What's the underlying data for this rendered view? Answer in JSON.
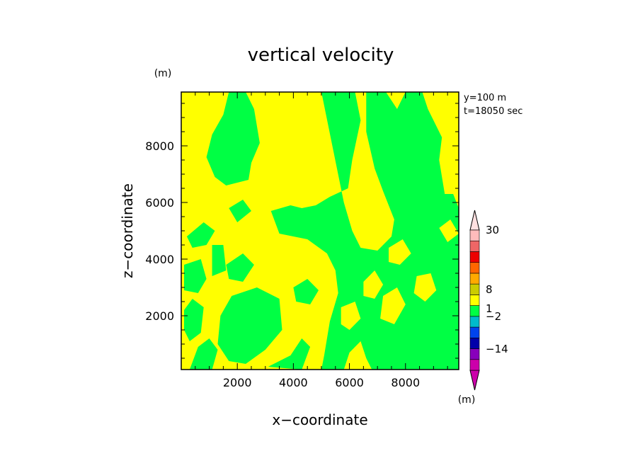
{
  "chart_data": {
    "type": "heatmap",
    "title": "vertical velocity",
    "xlabel": "x−coordinate",
    "ylabel": "z−coordinate",
    "x_unit": "(m)",
    "y_unit": "(m)",
    "annotations": [
      "y=100 m",
      "t=18050 sec"
    ],
    "xlim": [
      0,
      9900
    ],
    "ylim": [
      100,
      9900
    ],
    "x_ticks": [
      2000,
      4000,
      6000,
      8000
    ],
    "y_ticks": [
      2000,
      4000,
      6000,
      8000
    ],
    "x_tick_labels": [
      "2000",
      "4000",
      "6000",
      "8000"
    ],
    "y_tick_labels": [
      "2000",
      "4000",
      "6000",
      "8000"
    ],
    "colorbar": {
      "unit": "(m)",
      "labels": [
        {
          "value": 30,
          "text": "30"
        },
        {
          "value": 8,
          "text": "8"
        },
        {
          "value": 1,
          "text": "1"
        },
        {
          "value": -2,
          "text": "−2"
        },
        {
          "value": -14,
          "text": "−14"
        }
      ],
      "levels": [
        {
          "color": "#cc00aa"
        },
        {
          "color": "#8800bb"
        },
        {
          "color": "#0000aa"
        },
        {
          "color": "#0044ee"
        },
        {
          "color": "#00bbcc"
        },
        {
          "color": "#00ff44"
        },
        {
          "color": "#ffff00"
        },
        {
          "color": "#cccc00"
        },
        {
          "color": "#ffaa00"
        },
        {
          "color": "#ff6600"
        },
        {
          "color": "#ee0000"
        },
        {
          "color": "#ee6666"
        },
        {
          "color": "#ffbbbb"
        }
      ],
      "min_color": "#cc00aa",
      "max_color": "#ffe0e0"
    },
    "field_colors": {
      "positive": "#ffff00",
      "negative": "#00ff44"
    },
    "regions_negative": [
      [
        [
          5000,
          9900
        ],
        [
          6200,
          9900
        ],
        [
          6400,
          8900
        ],
        [
          6100,
          7500
        ],
        [
          5950,
          6500
        ],
        [
          5300,
          6200
        ],
        [
          4800,
          5900
        ],
        [
          4300,
          5800
        ],
        [
          3900,
          5900
        ],
        [
          3200,
          5700
        ],
        [
          3500,
          4900
        ],
        [
          4500,
          4700
        ],
        [
          5200,
          4200
        ],
        [
          5500,
          3600
        ],
        [
          5600,
          2800
        ],
        [
          5300,
          1800
        ],
        [
          5100,
          600
        ],
        [
          5000,
          100
        ],
        [
          5800,
          100
        ],
        [
          6000,
          700
        ],
        [
          6400,
          1100
        ],
        [
          6600,
          500
        ],
        [
          6800,
          100
        ],
        [
          9900,
          100
        ],
        [
          9900,
          5800
        ],
        [
          9700,
          6300
        ],
        [
          9400,
          6300
        ],
        [
          9200,
          7500
        ],
        [
          9300,
          8300
        ],
        [
          8800,
          9300
        ],
        [
          8600,
          9900
        ],
        [
          8000,
          9900
        ],
        [
          7700,
          9300
        ],
        [
          7300,
          9900
        ],
        [
          6600,
          9900
        ],
        [
          6600,
          8500
        ],
        [
          6900,
          7200
        ],
        [
          7200,
          6400
        ],
        [
          7600,
          5400
        ],
        [
          7500,
          4800
        ],
        [
          7000,
          4300
        ],
        [
          6400,
          4400
        ],
        [
          6100,
          5000
        ],
        [
          5800,
          6000
        ]
      ],
      [
        [
          1700,
          9900
        ],
        [
          2300,
          9900
        ],
        [
          2600,
          9300
        ],
        [
          2800,
          8100
        ],
        [
          2500,
          7400
        ],
        [
          2400,
          6800
        ],
        [
          1600,
          6600
        ],
        [
          1200,
          6900
        ],
        [
          900,
          7600
        ],
        [
          1100,
          8400
        ],
        [
          1500,
          9100
        ]
      ],
      [
        [
          8300,
          5900
        ],
        [
          8800,
          5800
        ],
        [
          9200,
          4800
        ],
        [
          8600,
          4300
        ],
        [
          8100,
          4800
        ]
      ],
      [
        [
          200,
          4800
        ],
        [
          800,
          5300
        ],
        [
          1200,
          5000
        ],
        [
          900,
          4500
        ],
        [
          400,
          4400
        ]
      ],
      [
        [
          100,
          3800
        ],
        [
          700,
          4000
        ],
        [
          900,
          3300
        ],
        [
          600,
          2800
        ],
        [
          100,
          2900
        ]
      ],
      [
        [
          1100,
          4500
        ],
        [
          1500,
          4500
        ],
        [
          1600,
          3600
        ],
        [
          1100,
          3400
        ]
      ],
      [
        [
          1600,
          3800
        ],
        [
          2200,
          4200
        ],
        [
          2600,
          3800
        ],
        [
          2200,
          3200
        ],
        [
          1700,
          3300
        ]
      ],
      [
        [
          1700,
          5800
        ],
        [
          2200,
          6100
        ],
        [
          2500,
          5700
        ],
        [
          2000,
          5300
        ]
      ],
      [
        [
          2700,
          3000
        ],
        [
          3500,
          2600
        ],
        [
          3600,
          1500
        ],
        [
          3000,
          800
        ],
        [
          2300,
          300
        ],
        [
          1700,
          400
        ],
        [
          1300,
          1000
        ],
        [
          1400,
          2000
        ],
        [
          1800,
          2700
        ]
      ],
      [
        [
          100,
          2200
        ],
        [
          400,
          2600
        ],
        [
          800,
          2300
        ],
        [
          700,
          1400
        ],
        [
          300,
          1100
        ],
        [
          100,
          1500
        ]
      ],
      [
        [
          600,
          900
        ],
        [
          1000,
          1200
        ],
        [
          1300,
          800
        ],
        [
          1100,
          100
        ],
        [
          300,
          100
        ]
      ],
      [
        [
          3100,
          200
        ],
        [
          3900,
          600
        ],
        [
          4300,
          1200
        ],
        [
          4600,
          900
        ],
        [
          4300,
          100
        ]
      ],
      [
        [
          4000,
          3000
        ],
        [
          4500,
          3300
        ],
        [
          4900,
          2900
        ],
        [
          4600,
          2400
        ],
        [
          4100,
          2500
        ]
      ],
      [
        [
          8800,
          1400
        ],
        [
          9500,
          1600
        ],
        [
          9900,
          1300
        ],
        [
          9900,
          100
        ],
        [
          9300,
          100
        ],
        [
          9000,
          400
        ]
      ]
    ],
    "regions_positive": [
      [
        [
          7200,
          2700
        ],
        [
          7700,
          3000
        ],
        [
          8000,
          2400
        ],
        [
          7600,
          1700
        ],
        [
          7100,
          1900
        ]
      ],
      [
        [
          8400,
          3400
        ],
        [
          8900,
          3500
        ],
        [
          9100,
          2900
        ],
        [
          8700,
          2500
        ],
        [
          8300,
          2800
        ]
      ],
      [
        [
          6500,
          3200
        ],
        [
          6900,
          3600
        ],
        [
          7200,
          3100
        ],
        [
          6900,
          2600
        ],
        [
          6500,
          2700
        ]
      ],
      [
        [
          7400,
          4400
        ],
        [
          7900,
          4700
        ],
        [
          8200,
          4200
        ],
        [
          7800,
          3800
        ],
        [
          7400,
          3900
        ]
      ],
      [
        [
          5700,
          2300
        ],
        [
          6200,
          2500
        ],
        [
          6400,
          1900
        ],
        [
          6000,
          1500
        ],
        [
          5700,
          1700
        ]
      ],
      [
        [
          9200,
          5100
        ],
        [
          9600,
          5400
        ],
        [
          9900,
          4900
        ],
        [
          9500,
          4600
        ]
      ]
    ]
  }
}
